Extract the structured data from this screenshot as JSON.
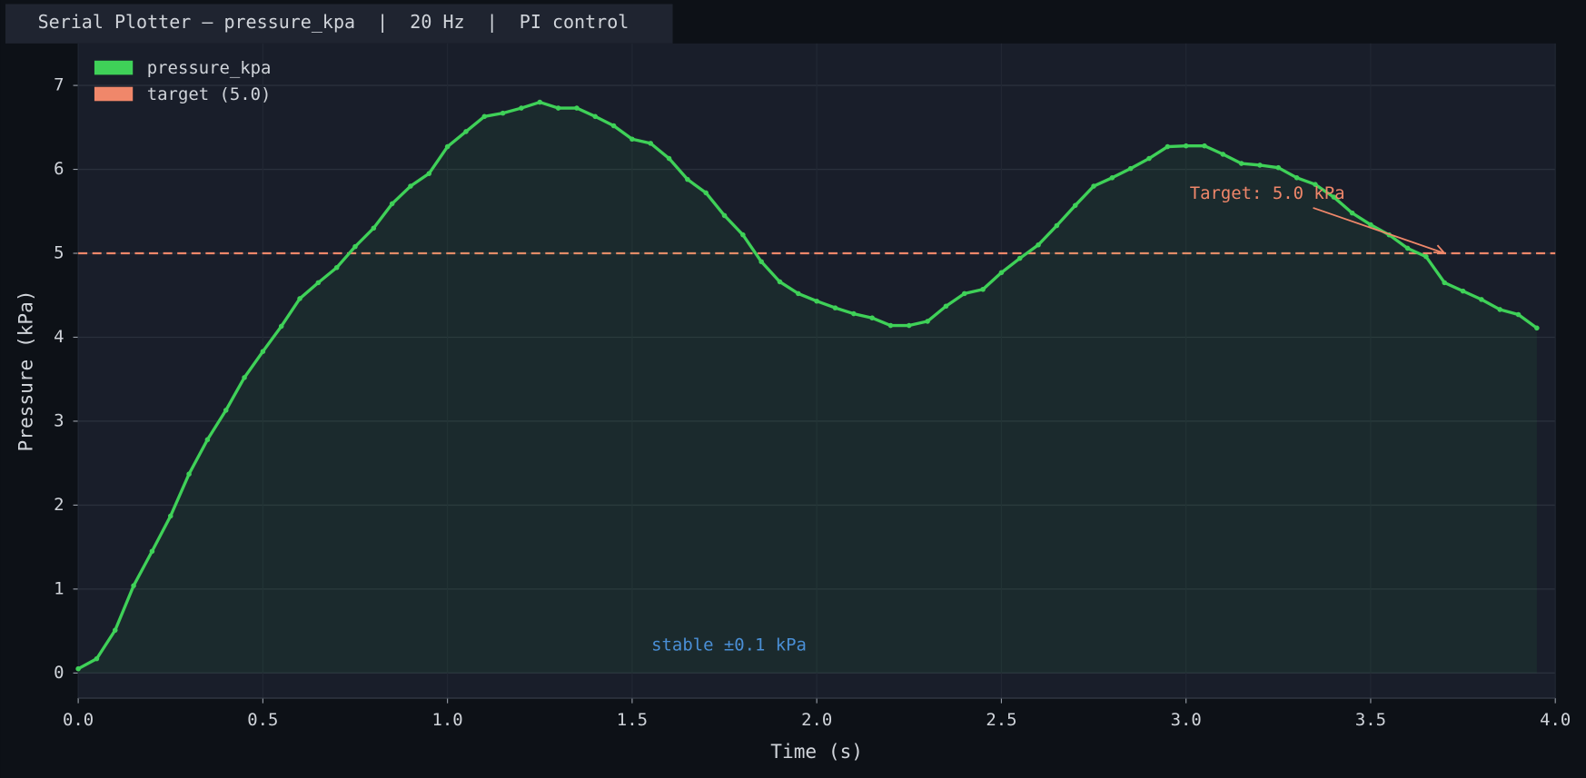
{
  "header": {
    "title": "Serial Plotter — pressure_kpa  |  20 Hz  |  PI control"
  },
  "chart_data": {
    "type": "line",
    "x_label": "Time (s)",
    "y_label": "Pressure (kPa)",
    "xlim": [
      0,
      4
    ],
    "ylim": [
      -0.3,
      7.5
    ],
    "xticks": [
      {
        "value": 0,
        "label": "0.0"
      },
      0.5,
      {
        "value": 1,
        "label": "1.0"
      },
      1.5,
      {
        "value": 2,
        "label": "2.0"
      },
      2.5,
      {
        "value": 3,
        "label": "3.0"
      },
      3.5,
      {
        "value": 4,
        "label": "4.0"
      }
    ],
    "yticks": [
      0,
      1,
      2,
      3,
      4,
      5,
      6,
      7
    ],
    "grid": true,
    "legend": "upper left",
    "x": [
      0,
      0.05,
      0.1,
      0.15,
      0.2,
      0.25,
      0.3,
      0.35,
      0.4,
      0.45,
      0.5,
      0.55,
      0.6,
      0.65,
      0.7,
      0.75,
      0.8,
      0.85,
      0.9,
      0.95,
      1,
      1.05,
      1.1,
      1.15,
      1.2,
      1.25,
      1.3,
      1.35,
      1.4,
      1.45,
      1.5,
      1.55,
      1.6,
      1.65,
      1.7,
      1.75,
      1.8,
      1.85,
      1.9,
      1.95,
      2,
      2.05,
      2.1,
      2.15,
      2.2,
      2.25,
      2.3,
      2.35,
      2.4,
      2.45,
      2.5,
      2.55,
      2.6,
      2.65,
      2.7,
      2.75,
      2.8,
      2.85,
      2.9,
      2.95,
      3,
      3.05,
      3.1,
      3.15,
      3.2,
      3.25,
      3.3,
      3.35,
      3.4,
      3.45,
      3.5,
      3.55,
      3.6,
      3.65,
      3.7,
      3.75,
      3.8,
      3.85,
      3.9,
      3.95
    ],
    "series": [
      {
        "name": "pressure_kpa",
        "color": "#3fd158",
        "values": [
          0.05,
          0.17,
          0.51,
          1.04,
          1.45,
          1.87,
          2.37,
          2.78,
          3.13,
          3.52,
          3.83,
          4.13,
          4.46,
          4.65,
          4.83,
          5.08,
          5.3,
          5.59,
          5.8,
          5.95,
          6.27,
          6.45,
          6.63,
          6.67,
          6.73,
          6.8,
          6.73,
          6.73,
          6.63,
          6.52,
          6.36,
          6.31,
          6.13,
          5.88,
          5.72,
          5.45,
          5.22,
          4.9,
          4.66,
          4.52,
          4.43,
          4.35,
          4.28,
          4.23,
          4.14,
          4.14,
          4.19,
          4.37,
          4.52,
          4.57,
          4.77,
          4.94,
          5.1,
          5.33,
          5.57,
          5.8,
          5.9,
          6.01,
          6.13,
          6.27,
          6.28,
          6.28,
          6.18,
          6.07,
          6.05,
          6.02,
          5.9,
          5.82,
          5.67,
          5.48,
          5.34,
          5.22,
          5.06,
          4.96,
          4.65,
          4.55,
          4.45,
          4.33,
          4.27,
          4.11
        ]
      }
    ],
    "target": {
      "name": "target (5.0)",
      "value": 5,
      "color": "#f0876a"
    },
    "annotations": [
      {
        "text": "Target: 5.0 kPa",
        "xy": [
          3.7,
          5
        ],
        "color": "#f0876a"
      },
      {
        "text": "stable ±0.1 kPa",
        "color": "#4a8fd6"
      }
    ]
  }
}
